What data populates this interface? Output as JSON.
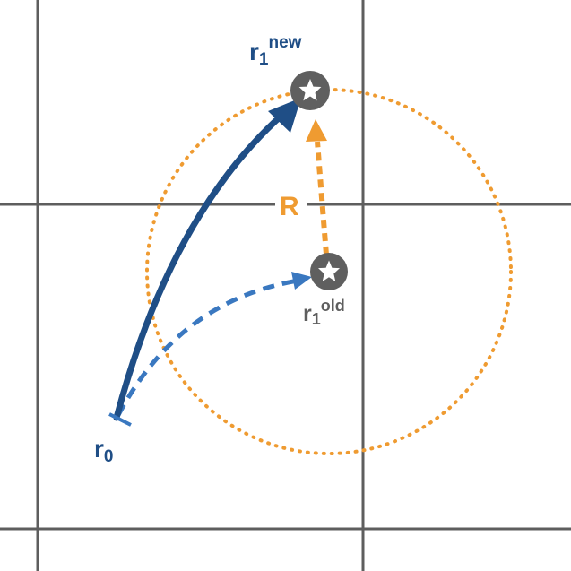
{
  "colors": {
    "grid": "#5e5e5e",
    "path_new": "#1f4e86",
    "path_old": "#3a78c0",
    "radius": "#ef9b31",
    "star_fill": "#5f5f5f",
    "star_glyph": "#ffffff",
    "label_old": "#5e5e5e"
  },
  "labels": {
    "r1_new_base": "r",
    "r1_new_sub": "1",
    "r1_new_sup": "new",
    "r1_old_base": "r",
    "r1_old_sub": "1",
    "r1_old_sup": "old",
    "r0_base": "r",
    "r0_sub": "0",
    "radius": "R"
  },
  "icons": {
    "new_position": "star-icon",
    "old_position": "star-icon"
  }
}
